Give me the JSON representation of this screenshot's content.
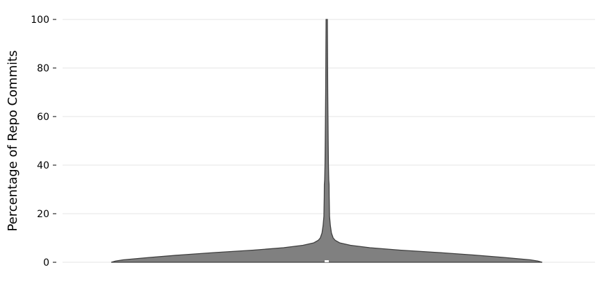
{
  "chart_data": {
    "type": "violin",
    "title": "",
    "xlabel": "",
    "ylabel": "Percentage of Repo Commits",
    "ylim": [
      0,
      100
    ],
    "yticks": [
      0,
      20,
      40,
      60,
      80,
      100
    ],
    "grid": true,
    "color": "#808080",
    "edge_color": "#3f3f3f",
    "median": 0,
    "density_profile": [
      {
        "y": 0,
        "density": 1.0
      },
      {
        "y": 0.5,
        "density": 0.98
      },
      {
        "y": 1,
        "density": 0.945
      },
      {
        "y": 2,
        "density": 0.82
      },
      {
        "y": 3,
        "density": 0.68
      },
      {
        "y": 4,
        "density": 0.52
      },
      {
        "y": 5,
        "density": 0.34
      },
      {
        "y": 6,
        "density": 0.2
      },
      {
        "y": 7,
        "density": 0.11
      },
      {
        "y": 8,
        "density": 0.06
      },
      {
        "y": 9,
        "density": 0.04
      },
      {
        "y": 10,
        "density": 0.03
      },
      {
        "y": 12,
        "density": 0.022
      },
      {
        "y": 15,
        "density": 0.017
      },
      {
        "y": 19,
        "density": 0.013
      },
      {
        "y": 22,
        "density": 0.0125
      },
      {
        "y": 27,
        "density": 0.0115
      },
      {
        "y": 32,
        "density": 0.011
      },
      {
        "y": 34,
        "density": 0.0095
      },
      {
        "y": 40,
        "density": 0.008
      },
      {
        "y": 50,
        "density": 0.0068
      },
      {
        "y": 60,
        "density": 0.0058
      },
      {
        "y": 70,
        "density": 0.0048
      },
      {
        "y": 80,
        "density": 0.0042
      },
      {
        "y": 90,
        "density": 0.0036
      },
      {
        "y": 96,
        "density": 0.0032
      },
      {
        "y": 100,
        "density": 0.003
      }
    ]
  }
}
